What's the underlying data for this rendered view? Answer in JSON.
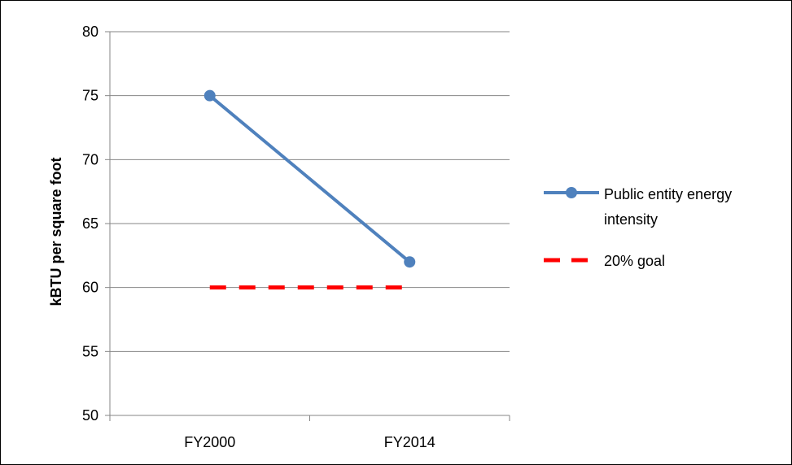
{
  "chart_data": {
    "type": "line",
    "categories": [
      "FY2000",
      "FY2014"
    ],
    "series": [
      {
        "name": "Public entity energy intensity",
        "values": [
          75,
          62
        ],
        "color": "#4F81BD",
        "style": "solid",
        "marker": "circle"
      },
      {
        "name": "20% goal",
        "values": [
          60,
          60
        ],
        "color": "#FF0000",
        "style": "dashed",
        "marker": "none"
      }
    ],
    "title": "",
    "xlabel": "",
    "ylabel": "kBTU per square foot",
    "ylim": [
      50,
      80
    ],
    "yticks": [
      50,
      55,
      60,
      65,
      70,
      75,
      80
    ],
    "grid": true,
    "legend": "right"
  }
}
